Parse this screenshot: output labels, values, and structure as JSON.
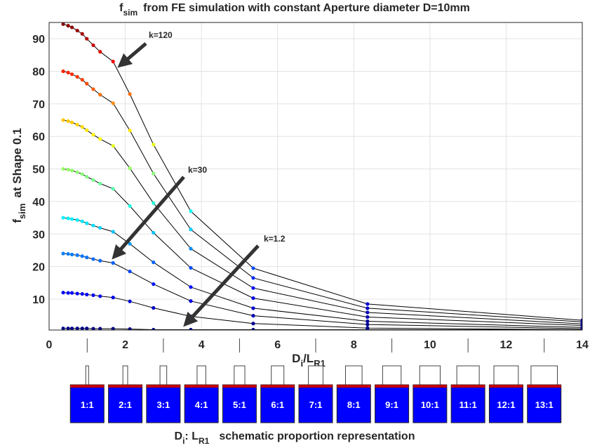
{
  "chart_data": {
    "type": "line",
    "title_symbol": "f",
    "title_subscript": "sim",
    "title_text": "from FE simulation with constant Aperture diameter D=10mm",
    "ylabel_symbol": "f",
    "ylabel_subscript": "sim",
    "ylabel_text": "at Shape 0.1",
    "xlabel_symbol": "D",
    "xlabel_subscript": "i",
    "xlabel_mid": "/L",
    "xlabel_subscript2": "R1",
    "x": [
      0.37,
      0.5,
      0.6,
      0.74,
      0.87,
      0.99,
      1.16,
      1.34,
      1.68,
      2.12,
      2.74,
      3.72,
      5.36,
      8.36,
      14
    ],
    "xlim": [
      0,
      14
    ],
    "xticks": [
      0,
      2,
      4,
      6,
      8,
      10,
      12,
      14
    ],
    "ylim": [
      0.5,
      95
    ],
    "yticks": [
      10,
      20,
      30,
      40,
      50,
      60,
      70,
      80,
      90
    ],
    "grid": true,
    "line_color": "#000000",
    "marker_colormap": "jet",
    "series": [
      {
        "values": [
          94.5,
          94.0,
          93.5,
          92.5,
          91.5,
          90.0,
          88.0,
          86.0,
          83.0,
          73.0,
          57.5,
          37.0,
          19.5,
          8.5,
          3.5
        ]
      },
      {
        "values": [
          80,
          79.6,
          79.1,
          78.3,
          77.4,
          76.2,
          74.5,
          72.8,
          70.2,
          61.8,
          48.6,
          31.4,
          16.5,
          7.2,
          3.0
        ]
      },
      {
        "values": [
          65,
          64.7,
          64.3,
          63.6,
          62.9,
          61.9,
          60.5,
          59.2,
          57.1,
          50.2,
          39.5,
          25.5,
          13.4,
          5.9,
          2.4
        ]
      },
      {
        "values": [
          50,
          49.8,
          49.5,
          49.0,
          48.4,
          47.6,
          46.6,
          45.5,
          43.9,
          38.6,
          30.4,
          19.6,
          10.3,
          4.5,
          1.9
        ]
      },
      {
        "values": [
          35,
          34.8,
          34.6,
          34.3,
          33.9,
          33.3,
          32.6,
          31.9,
          30.7,
          27.0,
          21.3,
          13.7,
          7.2,
          3.2,
          1.3
        ]
      },
      {
        "values": [
          24,
          23.9,
          23.7,
          23.5,
          23.2,
          22.8,
          22.3,
          21.8,
          21.1,
          18.5,
          14.6,
          9.4,
          4.9,
          2.2,
          0.9
        ]
      },
      {
        "values": [
          12,
          11.9,
          11.9,
          11.7,
          11.6,
          11.4,
          11.2,
          10.9,
          10.5,
          9.3,
          7.3,
          4.7,
          2.5,
          1.1,
          0.6
        ]
      },
      {
        "values": [
          1,
          1,
          1,
          1,
          1,
          1,
          0.9,
          0.9,
          0.9,
          0.8,
          0.6,
          0.6,
          0.6,
          0.6,
          0.6
        ]
      }
    ],
    "annotations": [
      "k=120",
      "k=30",
      "k=1.2"
    ],
    "schematic": {
      "labels": [
        "1:1",
        "2:1",
        "3:1",
        "4:1",
        "5:1",
        "6:1",
        "7:1",
        "8:1",
        "9:1",
        "10:1",
        "11:1",
        "12:1",
        "13:1"
      ],
      "caption_symbol": "D",
      "caption_subscript": "i",
      "caption_mid": ": L",
      "caption_subscript2": "R1",
      "caption_text": "schematic proportion representation",
      "box_color": "#0000ff",
      "top_color": "#c00000"
    }
  }
}
